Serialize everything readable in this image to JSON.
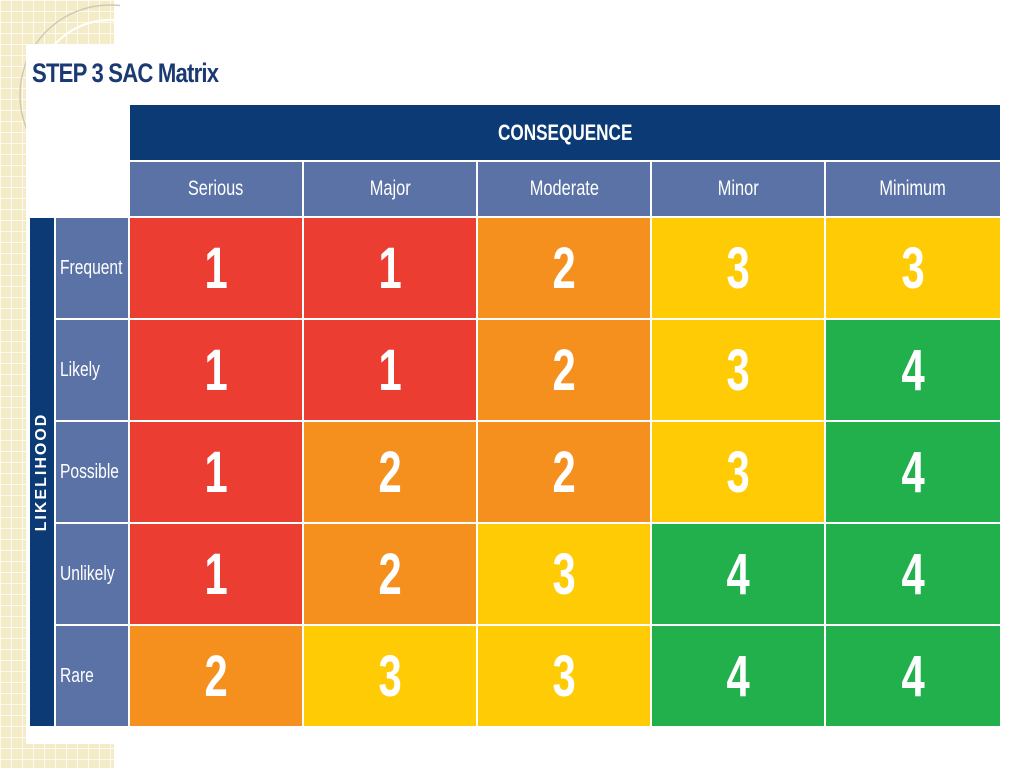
{
  "title": "STEP 3  SAC Matrix",
  "matrix": {
    "consequence_label": "CONSEQUENCE",
    "likelihood_label": "LIKELIHOOD",
    "columns": [
      "Serious",
      "Major",
      "Moderate",
      "Minor",
      "Minimum"
    ],
    "rows": [
      {
        "label": "Frequent",
        "values": [
          "1",
          "1",
          "2",
          "3",
          "3"
        ]
      },
      {
        "label": "Likely",
        "values": [
          "1",
          "1",
          "2",
          "3",
          "4"
        ]
      },
      {
        "label": "Possible",
        "values": [
          "1",
          "2",
          "2",
          "3",
          "4"
        ]
      },
      {
        "label": "Unlikely",
        "values": [
          "1",
          "2",
          "3",
          "4",
          "4"
        ]
      },
      {
        "label": "Rare",
        "values": [
          "2",
          "3",
          "3",
          "4",
          "4"
        ]
      }
    ]
  },
  "colors": {
    "header_navy": "#0b3a74",
    "header_blue": "#5b72a6",
    "level_1_red": "#ec3d33",
    "level_2_orange": "#f5901f",
    "level_3_yellow": "#fecb05",
    "level_4_green": "#21b04b",
    "title_blue": "#1b3a73",
    "background_grid": "#f4ecc6"
  }
}
